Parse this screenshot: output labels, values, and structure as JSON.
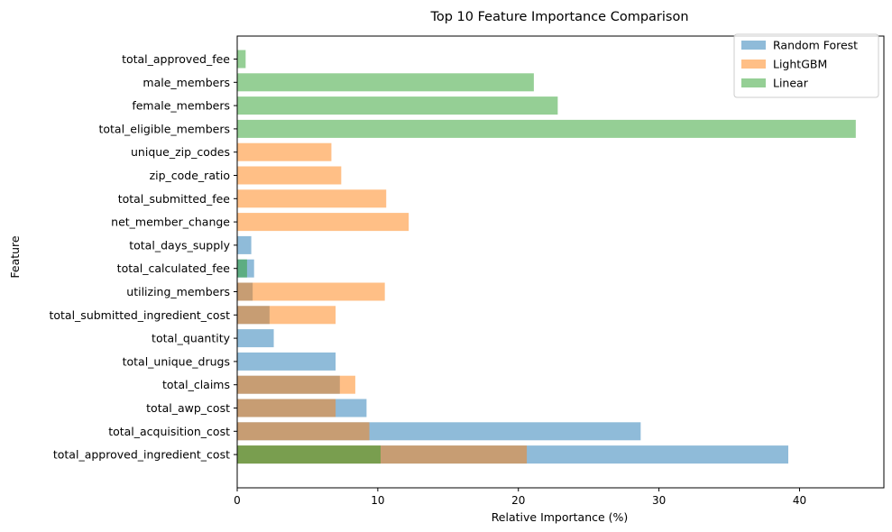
{
  "chart_data": {
    "type": "bar",
    "orientation": "horizontal",
    "title": "Top 10 Feature Importance Comparison",
    "xlabel": "Relative Importance (%)",
    "ylabel": "Feature",
    "xlim": [
      0,
      46
    ],
    "xticks": [
      0,
      10,
      20,
      30,
      40
    ],
    "grid": false,
    "legend_position": "top-right",
    "categories": [
      "total_approved_ingredient_cost",
      "total_acquisition_cost",
      "total_awp_cost",
      "total_claims",
      "total_unique_drugs",
      "total_quantity",
      "total_submitted_ingredient_cost",
      "utilizing_members",
      "total_calculated_fee",
      "total_days_supply",
      "net_member_change",
      "total_submitted_fee",
      "zip_code_ratio",
      "unique_zip_codes",
      "total_eligible_members",
      "female_members",
      "male_members",
      "total_approved_fee"
    ],
    "series": [
      {
        "name": "Random Forest",
        "color": "#1f77b4",
        "values": [
          39.2,
          28.7,
          9.2,
          7.3,
          7.0,
          2.6,
          2.3,
          1.1,
          1.2,
          1.0,
          null,
          null,
          null,
          null,
          null,
          null,
          null,
          null
        ]
      },
      {
        "name": "LightGBM",
        "color": "#ff7f0e",
        "values": [
          20.6,
          9.4,
          7.0,
          8.4,
          null,
          null,
          7.0,
          10.5,
          null,
          null,
          12.2,
          10.6,
          7.4,
          6.7,
          null,
          null,
          null,
          null
        ]
      },
      {
        "name": "Linear",
        "color": "#2ca02c",
        "values": [
          10.2,
          null,
          null,
          null,
          null,
          null,
          null,
          null,
          0.7,
          null,
          null,
          null,
          null,
          null,
          44.0,
          22.8,
          21.1,
          0.6
        ]
      }
    ],
    "bar_alpha": 0.5
  }
}
